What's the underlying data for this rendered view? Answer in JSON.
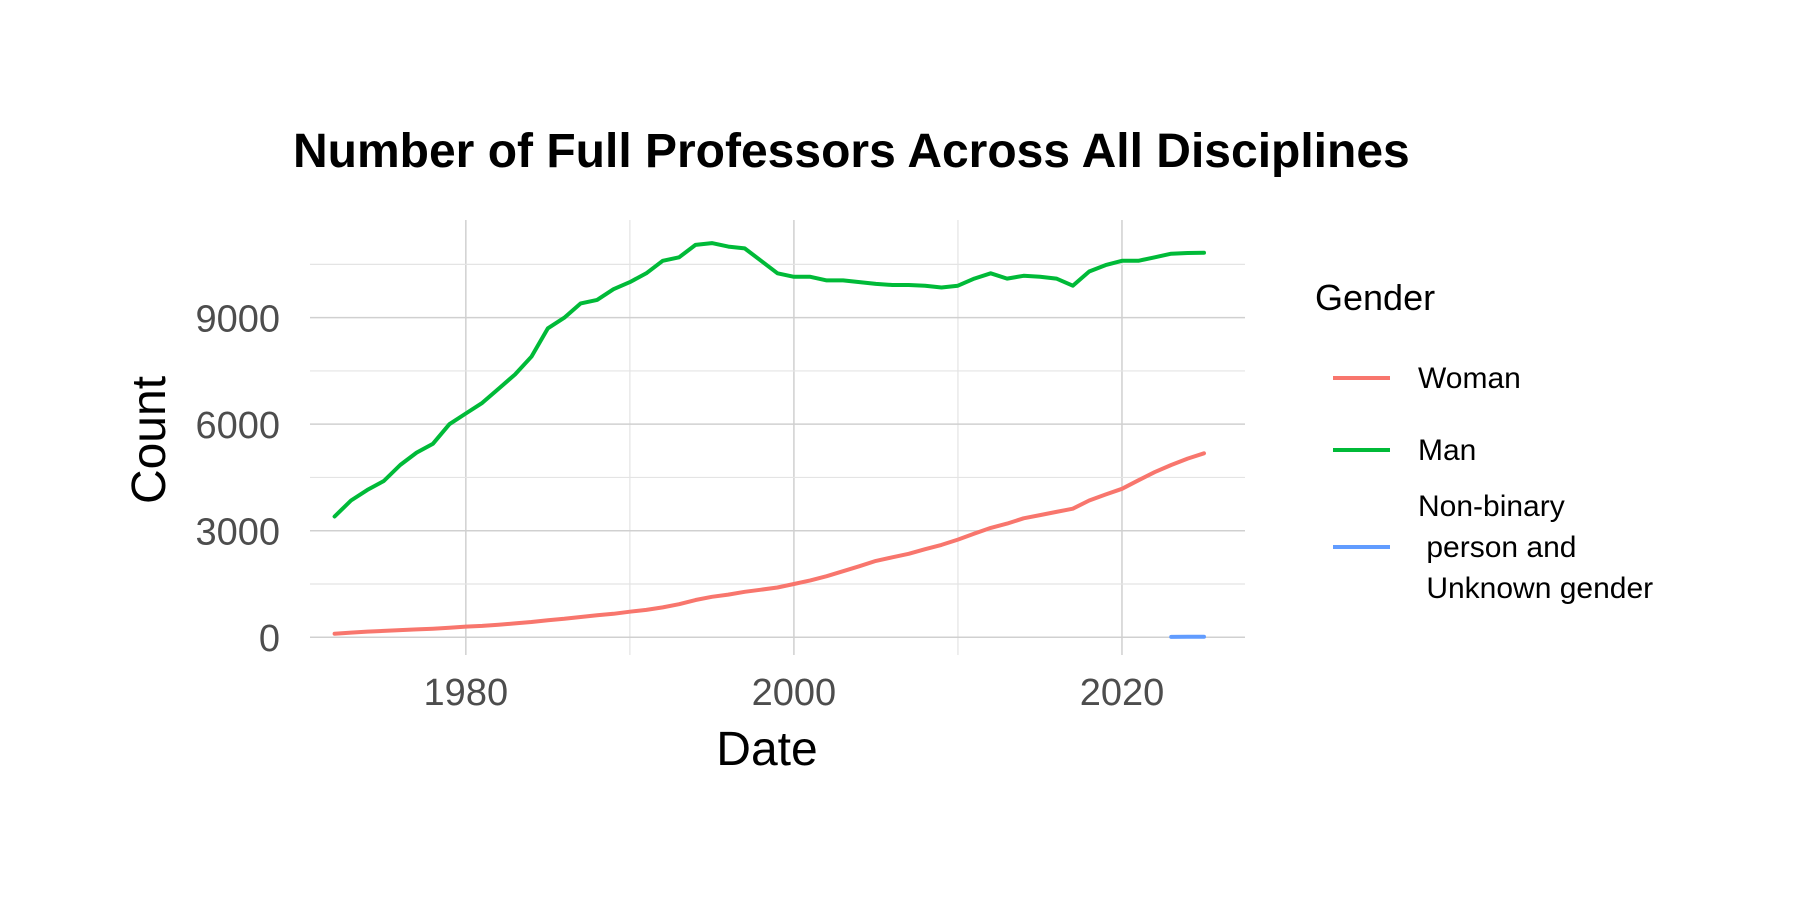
{
  "chart_data": {
    "type": "line",
    "title": "Number of Full Professors Across All Disciplines",
    "xlabel": "Date",
    "ylabel": "Count",
    "xlim": [
      1970.5,
      2027.5
    ],
    "ylim": [
      -500,
      11750
    ],
    "x_ticks": [
      1980,
      2000,
      2020
    ],
    "x_tick_labels": [
      "1980",
      "2000",
      "2020"
    ],
    "y_ticks": [
      0,
      3000,
      6000,
      9000
    ],
    "y_tick_labels": [
      "0",
      "3000",
      "6000",
      "9000"
    ],
    "grid": true,
    "legend": {
      "title": "Gender",
      "position": "right"
    },
    "series": [
      {
        "name": "Woman",
        "color": "#f8766d",
        "x": [
          1972,
          1973,
          1974,
          1975,
          1976,
          1977,
          1978,
          1979,
          1980,
          1981,
          1982,
          1983,
          1984,
          1985,
          1986,
          1987,
          1988,
          1989,
          1990,
          1991,
          1992,
          1993,
          1994,
          1995,
          1996,
          1997,
          1998,
          1999,
          2000,
          2001,
          2002,
          2003,
          2004,
          2005,
          2006,
          2007,
          2008,
          2009,
          2010,
          2011,
          2012,
          2013,
          2014,
          2015,
          2016,
          2017,
          2018,
          2019,
          2020,
          2021,
          2022,
          2023,
          2024,
          2025
        ],
        "values": [
          100,
          130,
          160,
          180,
          200,
          220,
          240,
          270,
          300,
          320,
          350,
          390,
          430,
          480,
          520,
          570,
          620,
          660,
          720,
          770,
          840,
          930,
          1050,
          1140,
          1200,
          1280,
          1340,
          1400,
          1500,
          1600,
          1720,
          1860,
          2000,
          2150,
          2250,
          2350,
          2480,
          2600,
          2750,
          2920,
          3080,
          3200,
          3350,
          3440,
          3530,
          3620,
          3850,
          4020,
          4180,
          4420,
          4650,
          4850,
          5030,
          5180
        ]
      },
      {
        "name": "Man",
        "color": "#00ba38",
        "x": [
          1972,
          1973,
          1974,
          1975,
          1976,
          1977,
          1978,
          1979,
          1980,
          1981,
          1982,
          1983,
          1984,
          1985,
          1986,
          1987,
          1988,
          1989,
          1990,
          1991,
          1992,
          1993,
          1994,
          1995,
          1996,
          1997,
          1998,
          1999,
          2000,
          2001,
          2002,
          2003,
          2004,
          2005,
          2006,
          2007,
          2008,
          2009,
          2010,
          2011,
          2012,
          2013,
          2014,
          2015,
          2016,
          2017,
          2018,
          2019,
          2020,
          2021,
          2022,
          2023,
          2024,
          2025
        ],
        "values": [
          3400,
          3850,
          4150,
          4400,
          4850,
          5200,
          5450,
          6000,
          6300,
          6600,
          7000,
          7400,
          7900,
          8700,
          9000,
          9400,
          9500,
          9800,
          10000,
          10250,
          10600,
          10700,
          11050,
          11100,
          11000,
          10950,
          10600,
          10250,
          10150,
          10150,
          10050,
          10050,
          10000,
          9950,
          9920,
          9920,
          9900,
          9850,
          9900,
          10100,
          10250,
          10100,
          10180,
          10150,
          10100,
          9900,
          10300,
          10480,
          10600,
          10600,
          10700,
          10800,
          10820,
          10830
        ]
      },
      {
        "name": "Non-binary\n person and\n Unknown gender",
        "color": "#619cff",
        "x": [
          2023,
          2024,
          2025
        ],
        "values": [
          10,
          12,
          15
        ]
      }
    ]
  }
}
